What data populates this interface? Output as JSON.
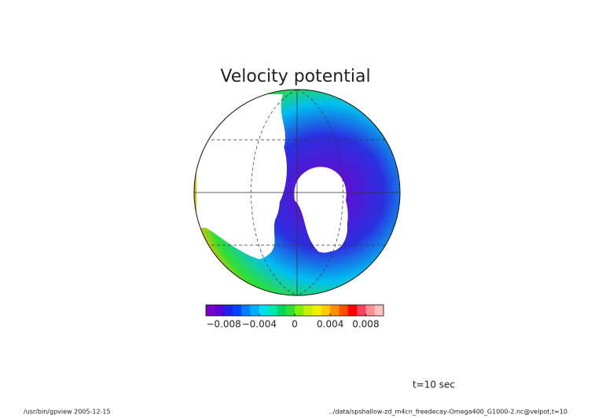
{
  "chart_data": {
    "type": "contour-map",
    "title": "Velocity potential",
    "colorbar": {
      "colors": [
        "#7a00c8",
        "#5a00d8",
        "#2020e8",
        "#0040ff",
        "#0080ff",
        "#00b0ff",
        "#00e0f0",
        "#00e8b0",
        "#00d860",
        "#30e030",
        "#80f000",
        "#c8f000",
        "#f0f000",
        "#ffc800",
        "#ff9000",
        "#ff5000",
        "#ff0000",
        "#ff4060",
        "#ff9090",
        "#ffc0c0"
      ],
      "lim": [
        -0.01,
        0.01
      ],
      "ticks": [
        {
          "value": -0.008,
          "label": "−0.008"
        },
        {
          "value": -0.004,
          "label": "−0.004"
        },
        0,
        0.004,
        0.008
      ]
    },
    "annotation": "t=10 sec",
    "footer_left": "/usr/bin/gpview  2005-12-15",
    "footer_right": "../data/spshallow-zd_m4cn_freedecay-Omega400_G1000-2.nc@velpot,t=10"
  }
}
